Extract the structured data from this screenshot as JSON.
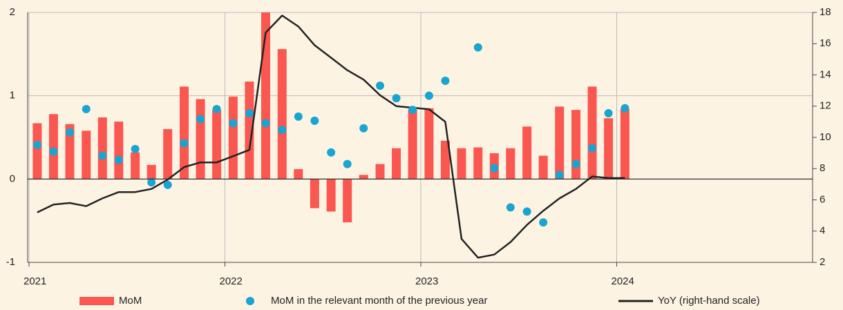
{
  "chart_data": {
    "type": "combo",
    "x": [
      2021.042,
      2021.125,
      2021.208,
      2021.292,
      2021.375,
      2021.458,
      2021.542,
      2021.625,
      2021.708,
      2021.792,
      2021.875,
      2021.958,
      2022.042,
      2022.125,
      2022.208,
      2022.292,
      2022.375,
      2022.458,
      2022.542,
      2022.625,
      2022.708,
      2022.792,
      2022.875,
      2022.958,
      2023.042,
      2023.125,
      2023.208,
      2023.292,
      2023.375,
      2023.458,
      2023.542,
      2023.625,
      2023.708,
      2023.792,
      2023.875,
      2023.958,
      2024.042
    ],
    "series": [
      {
        "name": "MoM",
        "type": "bar",
        "color": "#f9574f",
        "values": [
          0.67,
          0.78,
          0.66,
          0.58,
          0.74,
          0.69,
          0.32,
          0.17,
          0.6,
          1.11,
          0.96,
          0.83,
          0.99,
          1.17,
          2.0,
          1.56,
          0.12,
          -0.35,
          -0.39,
          -0.52,
          0.05,
          0.18,
          0.37,
          0.83,
          0.85,
          0.46,
          0.37,
          0.38,
          0.31,
          0.37,
          0.63,
          0.28,
          0.87,
          0.83,
          1.11,
          0.73,
          0.84
        ]
      },
      {
        "name": "MoM in the relevant month of the previous year",
        "type": "scatter",
        "color": "#1aa5d0",
        "values": [
          0.41,
          0.33,
          0.56,
          0.84,
          0.28,
          0.23,
          0.36,
          -0.04,
          -0.07,
          0.43,
          0.72,
          0.84,
          0.67,
          0.79,
          0.67,
          0.59,
          0.75,
          0.7,
          0.32,
          0.18,
          0.61,
          1.12,
          0.97,
          0.83,
          1.0,
          1.18,
          null,
          1.58,
          0.13,
          -0.34,
          -0.39,
          -0.52,
          0.05,
          0.18,
          0.37,
          0.79,
          0.85
        ]
      },
      {
        "name": "YoY (right-hand scale)",
        "type": "line",
        "axis": "y2",
        "color": "#222222",
        "values": [
          5.2,
          5.7,
          5.8,
          5.6,
          6.1,
          6.5,
          6.5,
          6.7,
          7.3,
          8.1,
          8.4,
          8.4,
          8.8,
          9.2,
          16.7,
          17.8,
          17.1,
          15.9,
          15.1,
          14.3,
          13.7,
          12.7,
          12.0,
          11.9,
          11.8,
          11.0,
          3.5,
          2.3,
          2.5,
          3.3,
          4.4,
          5.3,
          6.1,
          6.7,
          7.5,
          7.4,
          7.4
        ]
      }
    ],
    "xlim": [
      2021,
      2025
    ],
    "xticks": [
      2021,
      2022,
      2023,
      2024
    ],
    "ylim": [
      -1,
      2
    ],
    "yticks": [
      -1,
      0,
      1,
      2
    ],
    "y2lim": [
      2,
      18
    ],
    "y2ticks": [
      2,
      4,
      6,
      8,
      10,
      12,
      14,
      16,
      18
    ],
    "grid": true
  }
}
